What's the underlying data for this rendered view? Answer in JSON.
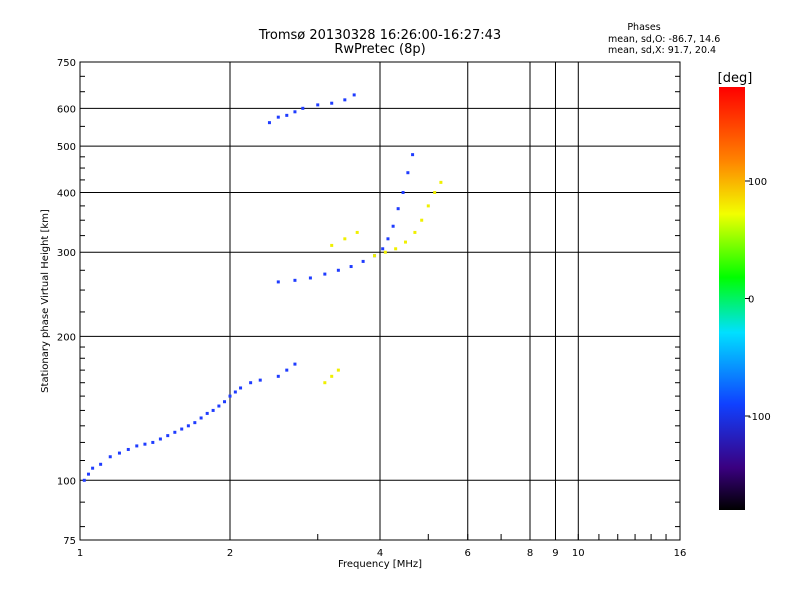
{
  "chart_data": {
    "type": "scatter",
    "title": "Tromsø 20130328 16:26:00-16:27:43",
    "subtitle": "RwPretec (8p)",
    "xlabel": "Frequency [MHz]",
    "ylabel": "Stationary phase Virtual Height [km]",
    "x_scale": "log",
    "y_scale": "log",
    "xlim": [
      1,
      16
    ],
    "ylim": [
      75,
      750
    ],
    "x_ticks": [
      1,
      2,
      4,
      6,
      8,
      9,
      10,
      16
    ],
    "x_tick_labels": [
      "1",
      "2",
      "4",
      "6",
      "8",
      "9",
      "10",
      "16"
    ],
    "y_ticks": [
      75,
      100,
      200,
      300,
      400,
      500,
      600,
      750
    ],
    "y_tick_labels": [
      "75",
      "100",
      "200",
      "300",
      "400",
      "500",
      "600",
      "750"
    ],
    "grid": true,
    "stats": {
      "heading": "Phases",
      "line1": "mean, sd,O: -86.7, 14.6",
      "line2": "mean, sd,X:  91.7, 20.4"
    },
    "colorbar": {
      "label": "[deg]",
      "range": [
        -180,
        180
      ],
      "ticks": [
        100,
        0,
        -100
      ],
      "tick_labels": [
        "100",
        "0",
        "-100"
      ]
    },
    "color_map": {
      "o_mode": "#1f3cff",
      "x_mode": "#f0f000"
    },
    "series": [
      {
        "mode": "O",
        "phase": -90,
        "points": [
          [
            1.02,
            100
          ],
          [
            1.04,
            103
          ],
          [
            1.06,
            106
          ],
          [
            1.1,
            108
          ],
          [
            1.15,
            112
          ],
          [
            1.2,
            114
          ],
          [
            1.25,
            116
          ],
          [
            1.3,
            118
          ],
          [
            1.35,
            119
          ],
          [
            1.4,
            120
          ],
          [
            1.45,
            122
          ],
          [
            1.5,
            124
          ],
          [
            1.55,
            126
          ],
          [
            1.6,
            128
          ],
          [
            1.65,
            130
          ],
          [
            1.7,
            132
          ],
          [
            1.75,
            135
          ],
          [
            1.8,
            138
          ],
          [
            1.85,
            140
          ],
          [
            1.9,
            143
          ],
          [
            1.95,
            146
          ],
          [
            2.0,
            150
          ],
          [
            2.05,
            153
          ],
          [
            2.1,
            156
          ],
          [
            2.2,
            160
          ],
          [
            2.3,
            162
          ],
          [
            2.5,
            165
          ],
          [
            2.6,
            170
          ],
          [
            2.7,
            175
          ]
        ]
      },
      {
        "mode": "O",
        "phase": -95,
        "points": [
          [
            2.5,
            260
          ],
          [
            2.7,
            262
          ],
          [
            2.9,
            265
          ],
          [
            3.1,
            270
          ],
          [
            3.3,
            275
          ],
          [
            3.5,
            280
          ],
          [
            3.7,
            287
          ],
          [
            3.9,
            295
          ],
          [
            4.05,
            305
          ],
          [
            4.15,
            320
          ],
          [
            4.25,
            340
          ],
          [
            4.35,
            370
          ],
          [
            4.45,
            400
          ],
          [
            4.55,
            440
          ],
          [
            4.65,
            480
          ]
        ]
      },
      {
        "mode": "O",
        "phase": -90,
        "points": [
          [
            2.4,
            560
          ],
          [
            2.5,
            575
          ],
          [
            2.6,
            580
          ],
          [
            2.7,
            590
          ],
          [
            2.8,
            600
          ],
          [
            3.0,
            610
          ],
          [
            3.2,
            615
          ],
          [
            3.4,
            625
          ],
          [
            3.55,
            640
          ]
        ]
      },
      {
        "mode": "X",
        "phase": 95,
        "points": [
          [
            3.9,
            295
          ],
          [
            4.1,
            300
          ],
          [
            4.3,
            305
          ],
          [
            4.5,
            315
          ],
          [
            4.7,
            330
          ],
          [
            4.85,
            350
          ],
          [
            5.0,
            375
          ],
          [
            5.15,
            400
          ],
          [
            5.3,
            420
          ],
          [
            3.2,
            310
          ],
          [
            3.4,
            320
          ],
          [
            3.6,
            330
          ],
          [
            3.1,
            160
          ],
          [
            3.2,
            165
          ],
          [
            3.3,
            170
          ]
        ]
      }
    ]
  }
}
